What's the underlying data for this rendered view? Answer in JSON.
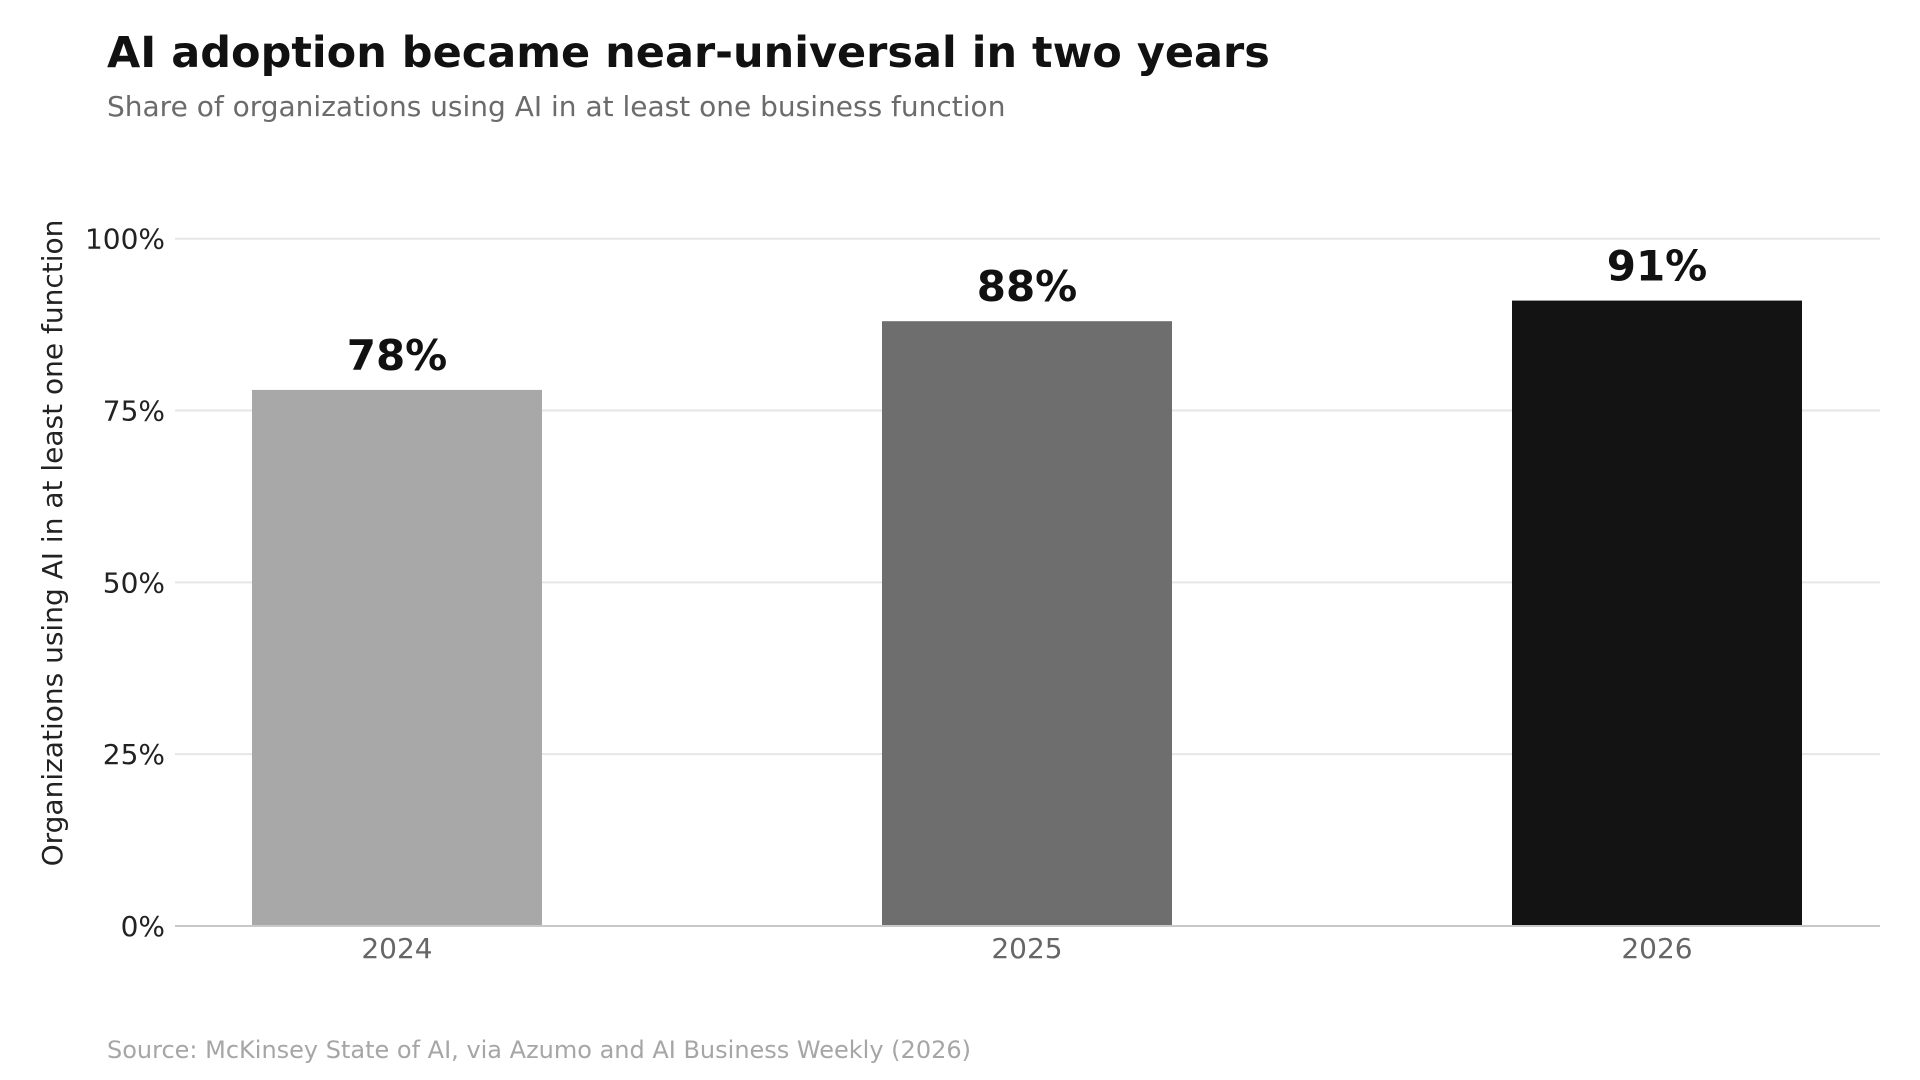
{
  "chart_data": {
    "type": "bar",
    "title": "AI adoption became near-universal in two years",
    "subtitle": "Share of organizations using AI in at least one business function",
    "source": "Source: McKinsey State of AI, via Azumo and AI Business Weekly (2026)",
    "xlabel": "",
    "ylabel": "Organizations using AI in at least one function",
    "categories": [
      "2024",
      "2025",
      "2026"
    ],
    "values": [
      78,
      88,
      91
    ],
    "data_labels": [
      "78%",
      "88%",
      "91%"
    ],
    "bar_colors": [
      "#a8a8a8",
      "#6e6e6e",
      "#131313"
    ],
    "ylim": [
      0,
      110
    ],
    "y_ticks": [
      0,
      25,
      50,
      75,
      100
    ],
    "y_tick_labels": [
      "0%",
      "25%",
      "50%",
      "75%",
      "100%"
    ],
    "grid": "horizontal",
    "legend": "none"
  }
}
